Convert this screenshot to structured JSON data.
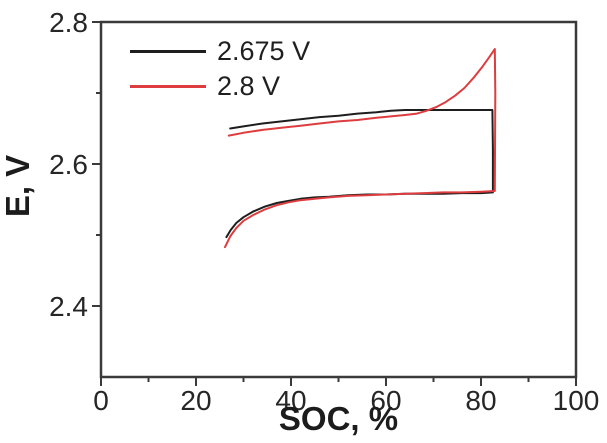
{
  "figure": {
    "background": "#ffffff",
    "frame_color": "#3a3a3a",
    "text_color": "#262626"
  },
  "chart_data": {
    "type": "line",
    "title": "",
    "xlabel": "SOC, %",
    "ylabel": "E, V",
    "xlim": [
      0,
      100
    ],
    "ylim": [
      2.3,
      2.8
    ],
    "grid": false,
    "legend_position": "top-left-inside",
    "x_major_ticks": [
      0,
      20,
      40,
      60,
      80,
      100
    ],
    "x_major_labels": [
      "0",
      "20",
      "40",
      "60",
      "80",
      "100"
    ],
    "x_minor_ticks": [
      10,
      30,
      50,
      70,
      90
    ],
    "y_major_ticks": [
      2.4,
      2.6,
      2.8
    ],
    "y_major_labels": [
      "2.4",
      "2.6",
      "2.8"
    ],
    "y_minor_ticks": [
      2.5,
      2.7
    ],
    "series": [
      {
        "name": "2.675 V",
        "color": "#1e1e1e",
        "description": "charge-discharge loop, upper cutoff 2.675 V",
        "points": [
          [
            27.2,
            2.65
          ],
          [
            30,
            2.653
          ],
          [
            34,
            2.657
          ],
          [
            38,
            2.66
          ],
          [
            42,
            2.663
          ],
          [
            46,
            2.666
          ],
          [
            50,
            2.668
          ],
          [
            54,
            2.671
          ],
          [
            58,
            2.673
          ],
          [
            61,
            2.675
          ],
          [
            64,
            2.676
          ],
          [
            68,
            2.676
          ],
          [
            72,
            2.676
          ],
          [
            76,
            2.676
          ],
          [
            80,
            2.676
          ],
          [
            82.4,
            2.676
          ],
          [
            82.5,
            2.62
          ],
          [
            82.5,
            2.56
          ],
          [
            80,
            2.559
          ],
          [
            76,
            2.559
          ],
          [
            72,
            2.558
          ],
          [
            68,
            2.558
          ],
          [
            64,
            2.558
          ],
          [
            60,
            2.557
          ],
          [
            56,
            2.557
          ],
          [
            52,
            2.556
          ],
          [
            48,
            2.554
          ],
          [
            45,
            2.553
          ],
          [
            42,
            2.551
          ],
          [
            39.5,
            2.548
          ],
          [
            37,
            2.545
          ],
          [
            34.5,
            2.54
          ],
          [
            32,
            2.533
          ],
          [
            30,
            2.525
          ],
          [
            28.5,
            2.517
          ],
          [
            27.3,
            2.507
          ],
          [
            26.4,
            2.497
          ]
        ]
      },
      {
        "name": "2.8 V",
        "color": "#dd3d3f",
        "description": "charge-discharge loop, upper cutoff 2.8 V",
        "points": [
          [
            26.9,
            2.64
          ],
          [
            30,
            2.644
          ],
          [
            34,
            2.648
          ],
          [
            38,
            2.651
          ],
          [
            42,
            2.654
          ],
          [
            46,
            2.657
          ],
          [
            50,
            2.66
          ],
          [
            54,
            2.662
          ],
          [
            58,
            2.665
          ],
          [
            61,
            2.667
          ],
          [
            64,
            2.669
          ],
          [
            66.5,
            2.671
          ],
          [
            68.5,
            2.675
          ],
          [
            70.5,
            2.68
          ],
          [
            72.5,
            2.687
          ],
          [
            74.5,
            2.696
          ],
          [
            76.5,
            2.707
          ],
          [
            78.5,
            2.722
          ],
          [
            80.3,
            2.737
          ],
          [
            81.8,
            2.751
          ],
          [
            82.9,
            2.762
          ],
          [
            83.0,
            2.7
          ],
          [
            82.9,
            2.562
          ],
          [
            80,
            2.561
          ],
          [
            76,
            2.56
          ],
          [
            72,
            2.56
          ],
          [
            68,
            2.559
          ],
          [
            64,
            2.558
          ],
          [
            60,
            2.557
          ],
          [
            56,
            2.556
          ],
          [
            52,
            2.555
          ],
          [
            48,
            2.553
          ],
          [
            45,
            2.551
          ],
          [
            42,
            2.549
          ],
          [
            39.5,
            2.546
          ],
          [
            37,
            2.542
          ],
          [
            34.5,
            2.536
          ],
          [
            32,
            2.528
          ],
          [
            30,
            2.52
          ],
          [
            28.5,
            2.51
          ],
          [
            27.2,
            2.498
          ],
          [
            26.1,
            2.483
          ]
        ]
      }
    ]
  }
}
